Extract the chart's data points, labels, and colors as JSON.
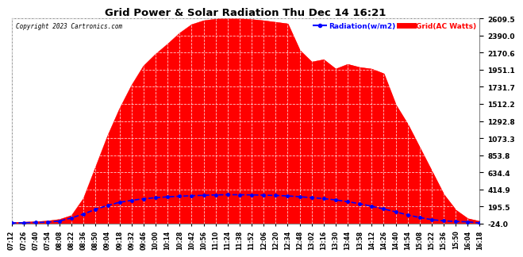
{
  "title": "Grid Power & Solar Radiation Thu Dec 14 16:21",
  "copyright": "Copyright 2023 Cartronics.com",
  "legend_radiation": "Radiation(w/m2)",
  "legend_grid": "Grid(AC Watts)",
  "yticks": [
    -24.0,
    195.5,
    414.9,
    634.4,
    853.8,
    1073.3,
    1292.8,
    1512.2,
    1731.7,
    1951.1,
    2170.6,
    2390.0,
    2609.5
  ],
  "ylim": [
    -24.0,
    2609.5
  ],
  "background_color": "#ffffff",
  "plot_bg_color": "#ffffff",
  "grid_color": "#bbbbbb",
  "red_fill_color": "#ff0000",
  "blue_line_color": "#0000ff",
  "title_color": "#000000",
  "copyright_color": "#000000",
  "xtick_labels": [
    "07:12",
    "07:26",
    "07:40",
    "07:54",
    "08:08",
    "08:22",
    "08:36",
    "08:50",
    "09:04",
    "09:18",
    "09:32",
    "09:46",
    "10:00",
    "10:14",
    "10:28",
    "10:42",
    "10:56",
    "11:10",
    "11:24",
    "11:38",
    "11:52",
    "12:06",
    "12:20",
    "12:34",
    "12:48",
    "13:02",
    "13:16",
    "13:30",
    "13:44",
    "13:58",
    "14:12",
    "14:26",
    "14:40",
    "14:54",
    "15:08",
    "15:22",
    "15:36",
    "15:50",
    "16:04",
    "16:18"
  ],
  "grid_power_data": [
    -10,
    -5,
    0,
    10,
    30,
    80,
    300,
    700,
    1100,
    1450,
    1750,
    2000,
    2150,
    2280,
    2420,
    2530,
    2580,
    2600,
    2609,
    2605,
    2595,
    2580,
    2560,
    2540,
    2200,
    2050,
    2080,
    1960,
    2020,
    1980,
    1960,
    1900,
    1500,
    1250,
    950,
    650,
    350,
    150,
    40,
    5
  ],
  "radiation_data": [
    -15,
    -12,
    -8,
    -5,
    10,
    50,
    100,
    160,
    210,
    250,
    275,
    295,
    310,
    320,
    328,
    335,
    340,
    345,
    348,
    347,
    345,
    342,
    338,
    332,
    322,
    310,
    298,
    280,
    258,
    232,
    200,
    165,
    128,
    88,
    55,
    28,
    12,
    4,
    0,
    -15
  ]
}
